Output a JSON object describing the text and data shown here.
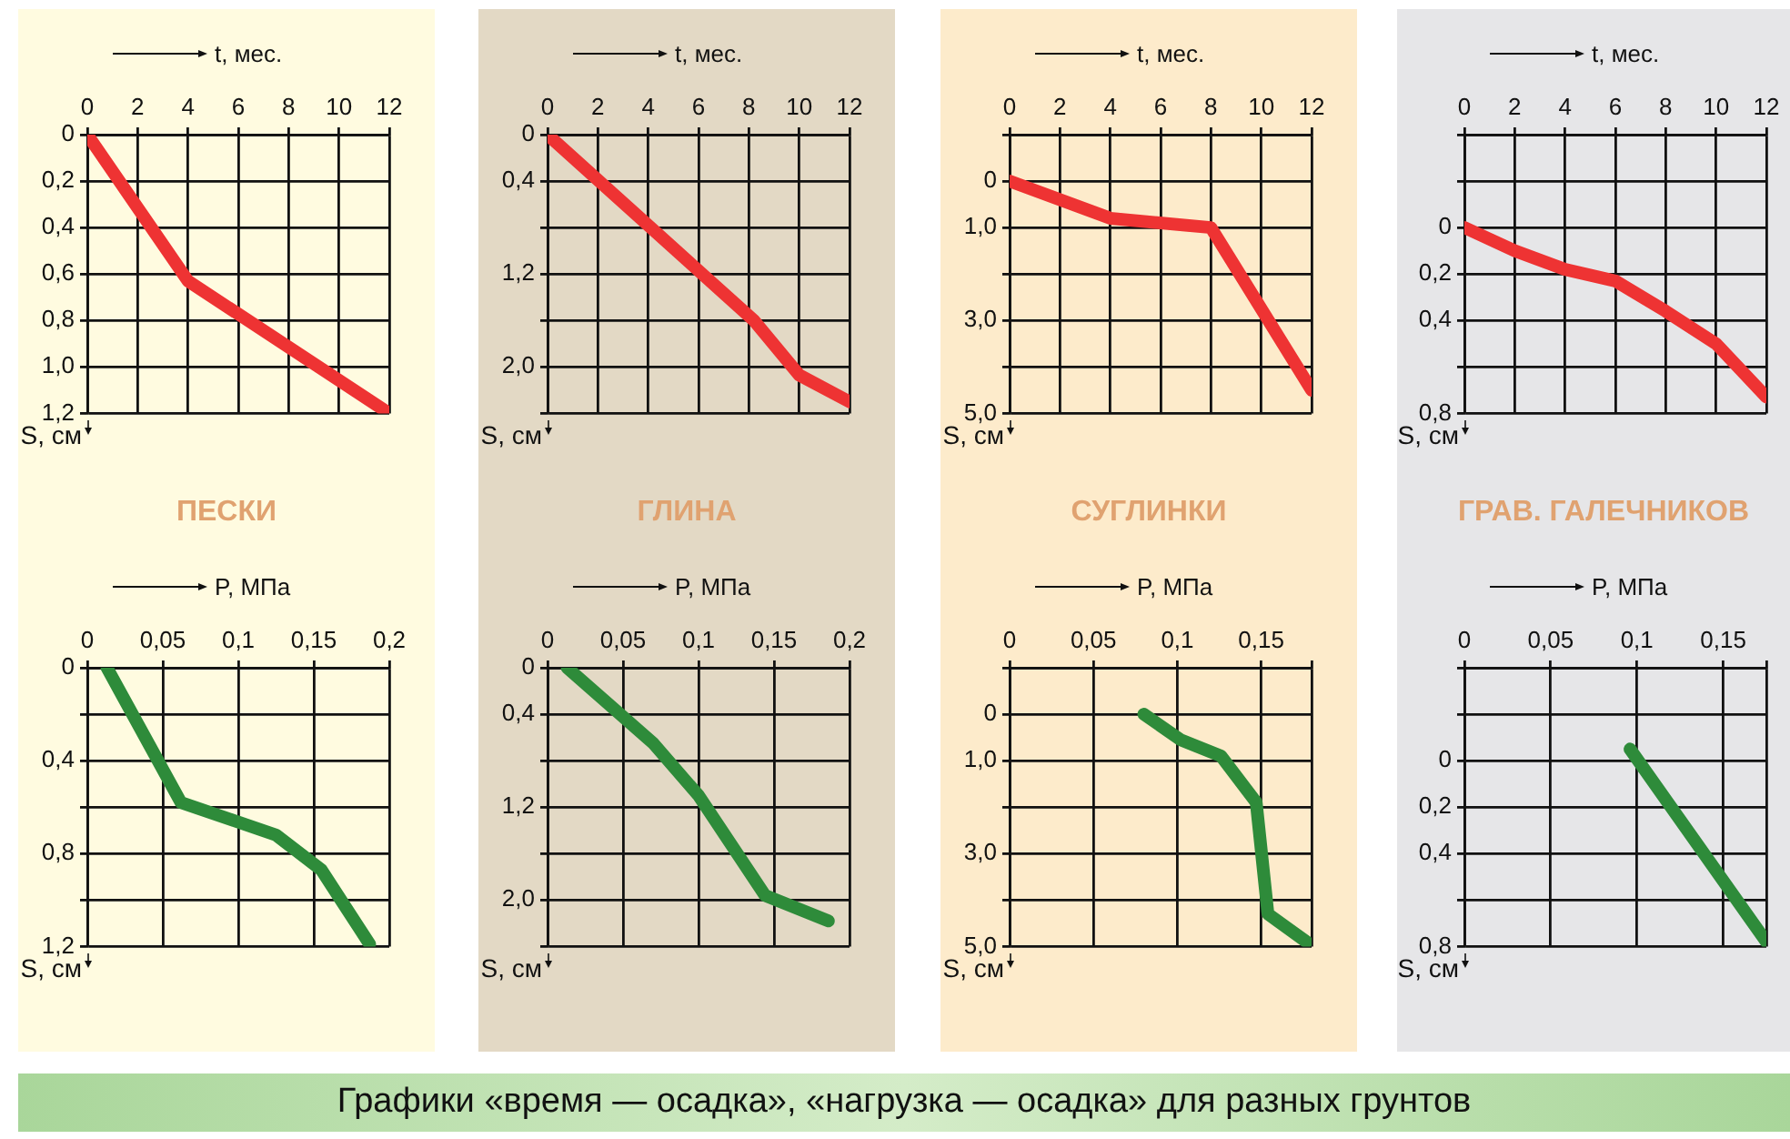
{
  "chart_data": [
    {
      "type": "line",
      "title": "ПЕСКИ",
      "xlabel": "t, мес.",
      "ylabel": "S, см",
      "grid": true,
      "annotations": [
        "Графики «время — осадка», «нагрузка — осадка» для разных грунтов"
      ],
      "xlim": [
        0,
        12
      ],
      "xticks": [
        0,
        2,
        4,
        6,
        8,
        10,
        12
      ],
      "ylim": [
        1.2,
        0
      ],
      "yticks": [
        {
          "value": 0,
          "label": "0"
        },
        {
          "value": 0.2,
          "label": "0,2"
        },
        {
          "value": 0.4,
          "label": "0,4"
        },
        {
          "value": 0.6,
          "label": "0,6"
        },
        {
          "value": 0.8,
          "label": "0,8"
        },
        {
          "value": 1.0,
          "label": "1,0"
        },
        {
          "value": 1.2,
          "label": "1,2"
        }
      ],
      "series": [
        {
          "color": "#ee3333",
          "x": [
            0,
            4,
            12
          ],
          "values": [
            0,
            0.63,
            1.2
          ]
        }
      ]
    },
    {
      "type": "line",
      "title": "ГЛИНА",
      "xlabel": "t, мес.",
      "ylabel": "S, см",
      "grid": true,
      "xlim": [
        0,
        12
      ],
      "xticks": [
        0,
        2,
        4,
        6,
        8,
        10,
        12
      ],
      "ylim": [
        2.4,
        0
      ],
      "yticks": [
        {
          "value": 0,
          "label": "0"
        },
        {
          "value": 0.4,
          "label": "0,4"
        },
        {
          "value": 0.8,
          "label": null
        },
        {
          "value": 1.2,
          "label": "1,2"
        },
        {
          "value": 1.6,
          "label": null
        },
        {
          "value": 2.0,
          "label": "2,0"
        },
        {
          "value": 2.4,
          "label": null
        }
      ],
      "series": [
        {
          "color": "#ee3333",
          "x": [
            0,
            8.2,
            10,
            12
          ],
          "values": [
            0,
            1.6,
            2.07,
            2.3
          ]
        }
      ]
    },
    {
      "type": "line",
      "title": "СУГЛИНКИ",
      "xlabel": "t, мес.",
      "ylabel": "S, см",
      "grid": true,
      "xlim": [
        0,
        12
      ],
      "xticks": [
        0,
        2,
        4,
        6,
        8,
        10,
        12
      ],
      "ylim": [
        5,
        -1
      ],
      "yticks": [
        {
          "value": -1,
          "label": null
        },
        {
          "value": 0,
          "label": "0"
        },
        {
          "value": 1,
          "label": "1,0"
        },
        {
          "value": 2,
          "label": null
        },
        {
          "value": 3,
          "label": "3,0"
        },
        {
          "value": 4,
          "label": null
        },
        {
          "value": 5,
          "label": "5,0"
        }
      ],
      "series": [
        {
          "color": "#ee3333",
          "x": [
            0,
            4,
            8,
            12
          ],
          "values": [
            0,
            0.8,
            1.0,
            4.5
          ]
        }
      ]
    },
    {
      "type": "line",
      "title": "ГРАВ. ГАЛЕЧНИКОВ",
      "xlabel": "t, мес.",
      "ylabel": "S, см",
      "grid": true,
      "xlim": [
        0,
        12
      ],
      "xticks": [
        0,
        2,
        4,
        6,
        8,
        10,
        12
      ],
      "ylim": [
        0.8,
        -0.4
      ],
      "yticks": [
        {
          "value": -0.4,
          "label": null
        },
        {
          "value": -0.2,
          "label": null
        },
        {
          "value": 0,
          "label": "0"
        },
        {
          "value": 0.2,
          "label": "0,2"
        },
        {
          "value": 0.4,
          "label": "0,4"
        },
        {
          "value": 0.6,
          "label": null
        },
        {
          "value": 0.8,
          "label": "0,8"
        }
      ],
      "series": [
        {
          "color": "#ee3333",
          "x": [
            0,
            2,
            4,
            6,
            8,
            10,
            12
          ],
          "values": [
            0,
            0.1,
            0.18,
            0.23,
            0.36,
            0.5,
            0.73
          ]
        }
      ]
    },
    {
      "type": "line",
      "xlabel": "P, МПа",
      "ylabel": "S, см",
      "grid": true,
      "xlim": [
        0,
        0.2
      ],
      "xticks": [
        0,
        {
          "value": 0.05,
          "label": "0,05"
        },
        {
          "value": 0.1,
          "label": "0,1"
        },
        {
          "value": 0.15,
          "label": "0,15"
        },
        {
          "value": 0.2,
          "label": "0,2"
        }
      ],
      "ylim": [
        1.2,
        0
      ],
      "yticks": [
        {
          "value": 0,
          "label": "0"
        },
        {
          "value": 0.2,
          "label": null
        },
        {
          "value": 0.4,
          "label": "0,4"
        },
        {
          "value": 0.6,
          "label": null
        },
        {
          "value": 0.8,
          "label": "0,8"
        },
        {
          "value": 1.0,
          "label": null
        },
        {
          "value": 1.2,
          "label": "1,2"
        }
      ],
      "series": [
        {
          "color": "#2e8b3a",
          "x": [
            0.013,
            0.062,
            0.125,
            0.155,
            0.168,
            0.187
          ],
          "values": [
            0,
            0.58,
            0.72,
            0.87,
            1.0,
            1.19
          ]
        }
      ]
    },
    {
      "type": "line",
      "xlabel": "P, МПа",
      "ylabel": "S, см",
      "grid": true,
      "xlim": [
        0,
        0.2
      ],
      "xticks": [
        0,
        {
          "value": 0.05,
          "label": "0,05"
        },
        {
          "value": 0.1,
          "label": "0,1"
        },
        {
          "value": 0.15,
          "label": "0,15"
        },
        {
          "value": 0.2,
          "label": "0,2"
        }
      ],
      "ylim": [
        2.4,
        0
      ],
      "yticks": [
        {
          "value": 0,
          "label": "0"
        },
        {
          "value": 0.4,
          "label": "0,4"
        },
        {
          "value": 0.8,
          "label": null
        },
        {
          "value": 1.2,
          "label": "1,2"
        },
        {
          "value": 1.6,
          "label": null
        },
        {
          "value": 2.0,
          "label": "2,0"
        },
        {
          "value": 2.4,
          "label": null
        }
      ],
      "series": [
        {
          "color": "#2e8b3a",
          "x": [
            0.013,
            0.07,
            0.1,
            0.144,
            0.186
          ],
          "values": [
            0,
            0.65,
            1.1,
            1.96,
            2.18
          ]
        }
      ]
    },
    {
      "type": "line",
      "xlabel": "P, МПа",
      "ylabel": "S, см",
      "grid": true,
      "xlim": [
        0,
        0.18
      ],
      "xticks": [
        0,
        {
          "value": 0.05,
          "label": "0,05"
        },
        {
          "value": 0.1,
          "label": "0,1"
        },
        {
          "value": 0.15,
          "label": "0,15"
        },
        {
          "value": 0.18,
          "label": null
        }
      ],
      "ylim": [
        5,
        -1
      ],
      "yticks": [
        {
          "value": -1,
          "label": null
        },
        {
          "value": 0,
          "label": "0"
        },
        {
          "value": 1,
          "label": "1,0"
        },
        {
          "value": 2,
          "label": null
        },
        {
          "value": 3,
          "label": "3,0"
        },
        {
          "value": 4,
          "label": null
        },
        {
          "value": 5,
          "label": "5,0"
        }
      ],
      "series": [
        {
          "color": "#2e8b3a",
          "x": [
            0.08,
            0.102,
            0.126,
            0.147,
            0.154,
            0.177
          ],
          "values": [
            0,
            0.55,
            0.9,
            1.9,
            4.3,
            4.9
          ]
        }
      ]
    },
    {
      "type": "line",
      "xlabel": "P, МПа",
      "ylabel": "S, см",
      "grid": true,
      "xlim": [
        0,
        0.175
      ],
      "xticks": [
        0,
        {
          "value": 0.05,
          "label": "0,05"
        },
        {
          "value": 0.1,
          "label": "0,1"
        },
        {
          "value": 0.15,
          "label": "0,15"
        },
        {
          "value": 0.175,
          "label": null
        }
      ],
      "ylim": [
        0.8,
        -0.4
      ],
      "yticks": [
        {
          "value": -0.4,
          "label": null
        },
        {
          "value": -0.2,
          "label": null
        },
        {
          "value": 0,
          "label": "0"
        },
        {
          "value": 0.2,
          "label": "0,2"
        },
        {
          "value": 0.4,
          "label": "0,4"
        },
        {
          "value": 0.6,
          "label": null
        },
        {
          "value": 0.8,
          "label": "0,8"
        }
      ],
      "series": [
        {
          "color": "#2e8b3a",
          "x": [
            0.096,
            0.175
          ],
          "values": [
            -0.05,
            0.78
          ]
        }
      ]
    }
  ]
}
